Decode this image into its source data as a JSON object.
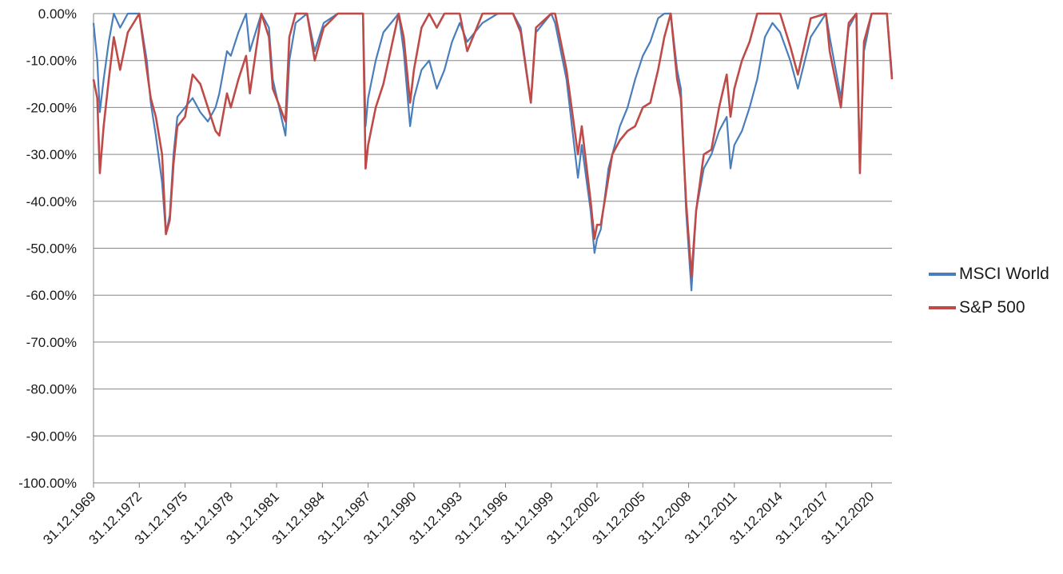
{
  "chart_data": {
    "type": "line",
    "title": "",
    "xlabel": "",
    "ylabel": "",
    "ylim": [
      -100,
      0
    ],
    "y_ticks": [
      0,
      -10,
      -20,
      -30,
      -40,
      -50,
      -60,
      -70,
      -80,
      -90,
      -100
    ],
    "y_tick_labels": [
      "0.00%",
      "-10.00%",
      "-20.00%",
      "-30.00%",
      "-40.00%",
      "-50.00%",
      "-60.00%",
      "-70.00%",
      "-80.00%",
      "-90.00%",
      "-100.00%"
    ],
    "x_tick_labels": [
      "31.12.1969",
      "31.12.1972",
      "31.12.1975",
      "31.12.1978",
      "31.12.1981",
      "31.12.1984",
      "31.12.1987",
      "31.12.1990",
      "31.12.1993",
      "31.12.1996",
      "31.12.1999",
      "31.12.2002",
      "31.12.2005",
      "31.12.2008",
      "31.12.2011",
      "31.12.2014",
      "31.12.2017",
      "31.12.2020"
    ],
    "xlim": [
      "1969-12-31",
      "2022-04-30"
    ],
    "grid": "horizontal",
    "legend_position": "right",
    "series": [
      {
        "name": "MSCI World",
        "color": "#4a7ebb",
        "points": [
          [
            "1969-12-31",
            -2
          ],
          [
            "1970-03-31",
            -10
          ],
          [
            "1970-05-31",
            -21
          ],
          [
            "1970-08-31",
            -14
          ],
          [
            "1970-12-31",
            -6
          ],
          [
            "1971-04-30",
            0
          ],
          [
            "1971-09-30",
            -3
          ],
          [
            "1972-03-31",
            0
          ],
          [
            "1972-12-31",
            0
          ],
          [
            "1973-06-30",
            -10
          ],
          [
            "1973-09-30",
            -19
          ],
          [
            "1974-01-31",
            -26
          ],
          [
            "1974-06-30",
            -36
          ],
          [
            "1974-09-30",
            -47
          ],
          [
            "1974-12-31",
            -43
          ],
          [
            "1975-03-31",
            -30
          ],
          [
            "1975-06-30",
            -22
          ],
          [
            "1975-12-31",
            -20
          ],
          [
            "1976-06-30",
            -18
          ],
          [
            "1976-12-31",
            -21
          ],
          [
            "1977-06-30",
            -23
          ],
          [
            "1977-12-31",
            -20
          ],
          [
            "1978-03-31",
            -17
          ],
          [
            "1978-09-30",
            -8
          ],
          [
            "1978-12-31",
            -9
          ],
          [
            "1979-06-30",
            -4
          ],
          [
            "1979-12-31",
            0
          ],
          [
            "1980-03-31",
            -8
          ],
          [
            "1980-12-31",
            0
          ],
          [
            "1981-06-30",
            -3
          ],
          [
            "1981-09-30",
            -14
          ],
          [
            "1982-07-31",
            -26
          ],
          [
            "1982-10-31",
            -10
          ],
          [
            "1983-03-31",
            -2
          ],
          [
            "1983-12-31",
            0
          ],
          [
            "1984-06-30",
            -8
          ],
          [
            "1985-01-31",
            -2
          ],
          [
            "1985-12-31",
            0
          ],
          [
            "1986-12-31",
            0
          ],
          [
            "1987-08-31",
            0
          ],
          [
            "1987-10-31",
            -24
          ],
          [
            "1987-12-31",
            -18
          ],
          [
            "1988-06-30",
            -10
          ],
          [
            "1988-12-31",
            -4
          ],
          [
            "1989-12-31",
            0
          ],
          [
            "1990-04-30",
            -8
          ],
          [
            "1990-09-30",
            -24
          ],
          [
            "1990-12-31",
            -18
          ],
          [
            "1991-06-30",
            -12
          ],
          [
            "1991-12-31",
            -10
          ],
          [
            "1992-06-30",
            -16
          ],
          [
            "1992-12-31",
            -12
          ],
          [
            "1993-06-30",
            -6
          ],
          [
            "1993-12-31",
            -2
          ],
          [
            "1994-06-30",
            -6
          ],
          [
            "1995-06-30",
            -2
          ],
          [
            "1996-06-30",
            0
          ],
          [
            "1997-06-30",
            0
          ],
          [
            "1997-12-31",
            -3
          ],
          [
            "1998-08-31",
            -19
          ],
          [
            "1998-12-31",
            -4
          ],
          [
            "1999-12-31",
            0
          ],
          [
            "2000-03-31",
            -2
          ],
          [
            "2000-12-31",
            -14
          ],
          [
            "2001-09-30",
            -35
          ],
          [
            "2001-12-31",
            -28
          ],
          [
            "2002-07-31",
            -42
          ],
          [
            "2002-10-31",
            -51
          ],
          [
            "2002-12-31",
            -48
          ],
          [
            "2003-03-31",
            -46
          ],
          [
            "2003-09-30",
            -33
          ],
          [
            "2003-12-31",
            -30
          ],
          [
            "2004-06-30",
            -24
          ],
          [
            "2004-12-31",
            -20
          ],
          [
            "2005-06-30",
            -14
          ],
          [
            "2005-12-31",
            -9
          ],
          [
            "2006-06-30",
            -6
          ],
          [
            "2006-12-31",
            -1
          ],
          [
            "2007-05-31",
            0
          ],
          [
            "2007-10-31",
            0
          ],
          [
            "2008-03-31",
            -12
          ],
          [
            "2008-06-30",
            -16
          ],
          [
            "2008-10-31",
            -42
          ],
          [
            "2009-03-09",
            -59
          ],
          [
            "2009-06-30",
            -42
          ],
          [
            "2009-12-31",
            -33
          ],
          [
            "2010-06-30",
            -30
          ],
          [
            "2010-12-31",
            -25
          ],
          [
            "2011-06-30",
            -22
          ],
          [
            "2011-09-30",
            -33
          ],
          [
            "2011-12-31",
            -28
          ],
          [
            "2012-06-30",
            -25
          ],
          [
            "2012-12-31",
            -20
          ],
          [
            "2013-06-30",
            -14
          ],
          [
            "2013-12-31",
            -5
          ],
          [
            "2014-06-30",
            -2
          ],
          [
            "2014-12-31",
            -4
          ],
          [
            "2015-08-31",
            -10
          ],
          [
            "2016-02-29",
            -16
          ],
          [
            "2016-12-31",
            -5
          ],
          [
            "2017-12-31",
            0
          ],
          [
            "2018-03-31",
            -5
          ],
          [
            "2018-12-24",
            -18
          ],
          [
            "2019-06-30",
            -3
          ],
          [
            "2019-12-31",
            0
          ],
          [
            "2020-03-23",
            -33
          ],
          [
            "2020-06-30",
            -8
          ],
          [
            "2020-12-31",
            0
          ],
          [
            "2021-12-31",
            0
          ],
          [
            "2022-04-30",
            -13
          ]
        ]
      },
      {
        "name": "S&P 500",
        "color": "#be4b48",
        "points": [
          [
            "1969-12-31",
            -14
          ],
          [
            "1970-03-31",
            -18
          ],
          [
            "1970-05-31",
            -34
          ],
          [
            "1970-08-31",
            -24
          ],
          [
            "1970-12-31",
            -14
          ],
          [
            "1971-04-30",
            -5
          ],
          [
            "1971-09-30",
            -12
          ],
          [
            "1972-03-31",
            -4
          ],
          [
            "1972-12-31",
            0
          ],
          [
            "1973-06-30",
            -12
          ],
          [
            "1973-09-30",
            -18
          ],
          [
            "1974-01-31",
            -22
          ],
          [
            "1974-06-30",
            -30
          ],
          [
            "1974-09-30",
            -47
          ],
          [
            "1974-12-31",
            -44
          ],
          [
            "1975-03-31",
            -32
          ],
          [
            "1975-06-30",
            -24
          ],
          [
            "1975-12-31",
            -22
          ],
          [
            "1976-06-30",
            -13
          ],
          [
            "1976-12-31",
            -15
          ],
          [
            "1977-06-30",
            -20
          ],
          [
            "1977-12-31",
            -25
          ],
          [
            "1978-03-31",
            -26
          ],
          [
            "1978-09-30",
            -17
          ],
          [
            "1978-12-31",
            -20
          ],
          [
            "1979-06-30",
            -14
          ],
          [
            "1979-12-31",
            -9
          ],
          [
            "1980-03-31",
            -17
          ],
          [
            "1980-12-31",
            0
          ],
          [
            "1981-06-30",
            -5
          ],
          [
            "1981-09-30",
            -16
          ],
          [
            "1982-07-31",
            -23
          ],
          [
            "1982-10-31",
            -5
          ],
          [
            "1983-03-31",
            0
          ],
          [
            "1983-12-31",
            0
          ],
          [
            "1984-06-30",
            -10
          ],
          [
            "1985-01-31",
            -3
          ],
          [
            "1985-12-31",
            0
          ],
          [
            "1986-12-31",
            0
          ],
          [
            "1987-08-31",
            0
          ],
          [
            "1987-10-31",
            -33
          ],
          [
            "1987-12-31",
            -28
          ],
          [
            "1988-06-30",
            -20
          ],
          [
            "1988-12-31",
            -15
          ],
          [
            "1989-12-31",
            0
          ],
          [
            "1990-04-30",
            -5
          ],
          [
            "1990-09-30",
            -19
          ],
          [
            "1990-12-31",
            -12
          ],
          [
            "1991-06-30",
            -3
          ],
          [
            "1991-12-31",
            0
          ],
          [
            "1992-06-30",
            -3
          ],
          [
            "1992-12-31",
            0
          ],
          [
            "1993-06-30",
            0
          ],
          [
            "1993-12-31",
            0
          ],
          [
            "1994-06-30",
            -8
          ],
          [
            "1995-06-30",
            0
          ],
          [
            "1996-06-30",
            0
          ],
          [
            "1997-06-30",
            0
          ],
          [
            "1997-12-31",
            -4
          ],
          [
            "1998-08-31",
            -19
          ],
          [
            "1998-12-31",
            -3
          ],
          [
            "1999-12-31",
            0
          ],
          [
            "2000-03-31",
            0
          ],
          [
            "2000-12-31",
            -12
          ],
          [
            "2001-09-30",
            -30
          ],
          [
            "2001-12-31",
            -24
          ],
          [
            "2002-07-31",
            -40
          ],
          [
            "2002-10-31",
            -48
          ],
          [
            "2002-12-31",
            -45
          ],
          [
            "2003-03-31",
            -45
          ],
          [
            "2003-09-30",
            -35
          ],
          [
            "2003-12-31",
            -30
          ],
          [
            "2004-06-30",
            -27
          ],
          [
            "2004-12-31",
            -25
          ],
          [
            "2005-06-30",
            -24
          ],
          [
            "2005-12-31",
            -20
          ],
          [
            "2006-06-30",
            -19
          ],
          [
            "2006-12-31",
            -12
          ],
          [
            "2007-05-31",
            -5
          ],
          [
            "2007-10-31",
            0
          ],
          [
            "2008-03-31",
            -14
          ],
          [
            "2008-06-30",
            -18
          ],
          [
            "2008-10-31",
            -40
          ],
          [
            "2009-03-09",
            -56
          ],
          [
            "2009-06-30",
            -42
          ],
          [
            "2009-12-31",
            -30
          ],
          [
            "2010-06-30",
            -29
          ],
          [
            "2010-12-31",
            -20
          ],
          [
            "2011-06-30",
            -13
          ],
          [
            "2011-09-30",
            -22
          ],
          [
            "2011-12-31",
            -16
          ],
          [
            "2012-06-30",
            -10
          ],
          [
            "2012-12-31",
            -6
          ],
          [
            "2013-06-30",
            0
          ],
          [
            "2013-12-31",
            0
          ],
          [
            "2014-06-30",
            0
          ],
          [
            "2014-12-31",
            0
          ],
          [
            "2015-08-31",
            -7
          ],
          [
            "2016-02-29",
            -13
          ],
          [
            "2016-12-31",
            -1
          ],
          [
            "2017-12-31",
            0
          ],
          [
            "2018-03-31",
            -8
          ],
          [
            "2018-12-24",
            -20
          ],
          [
            "2019-06-30",
            -2
          ],
          [
            "2019-12-31",
            0
          ],
          [
            "2020-03-23",
            -34
          ],
          [
            "2020-06-30",
            -6
          ],
          [
            "2020-12-31",
            0
          ],
          [
            "2021-12-31",
            0
          ],
          [
            "2022-04-30",
            -14
          ]
        ]
      }
    ]
  }
}
